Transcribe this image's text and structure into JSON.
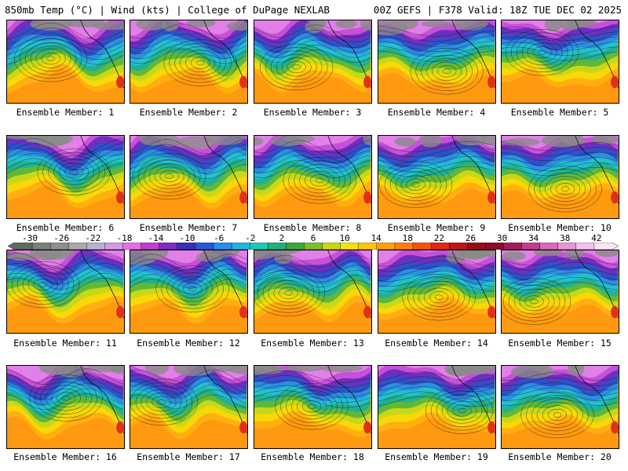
{
  "header": {
    "left": "850mb Temp (°C) | Wind (kts) | College of DuPage NEXLAB",
    "right": "00Z GEFS | F378 Valid: 18Z TUE DEC 02 2025"
  },
  "member_prefix": "Ensemble Member: ",
  "members": [
    {
      "label": "Ensemble Member: 1"
    },
    {
      "label": "Ensemble Member: 2"
    },
    {
      "label": "Ensemble Member: 3"
    },
    {
      "label": "Ensemble Member: 4"
    },
    {
      "label": "Ensemble Member: 5"
    },
    {
      "label": "Ensemble Member: 6"
    },
    {
      "label": "Ensemble Member: 7"
    },
    {
      "label": "Ensemble Member: 8"
    },
    {
      "label": "Ensemble Member: 9"
    },
    {
      "label": "Ensemble Member: 10"
    },
    {
      "label": "Ensemble Member: 11"
    },
    {
      "label": "Ensemble Member: 12"
    },
    {
      "label": "Ensemble Member: 13"
    },
    {
      "label": "Ensemble Member: 14"
    },
    {
      "label": "Ensemble Member: 15"
    },
    {
      "label": "Ensemble Member: 16"
    },
    {
      "label": "Ensemble Member: 17"
    },
    {
      "label": "Ensemble Member: 18"
    },
    {
      "label": "Ensemble Member: 19"
    },
    {
      "label": "Ensemble Member: 20"
    }
  ],
  "colorbar": {
    "ticks": [
      "-30",
      "-26",
      "-22",
      "-18",
      "-14",
      "-10",
      "-6",
      "-2",
      "2",
      "6",
      "10",
      "14",
      "18",
      "22",
      "26",
      "30",
      "34",
      "38",
      "42"
    ],
    "colors": [
      "#5f6b60",
      "#7a807a",
      "#8e8e8e",
      "#a9a9a9",
      "#b7b1d2",
      "#d19be0",
      "#e66ee6",
      "#c03fd0",
      "#7a2fc0",
      "#3a2fb8",
      "#2a57d8",
      "#2b8de8",
      "#20b5e0",
      "#1cc7b6",
      "#22b07a",
      "#3ba83c",
      "#7bbf2a",
      "#c9d60f",
      "#f2e40a",
      "#ffc40a",
      "#ffa00a",
      "#ff7e0a",
      "#f4540e",
      "#e02a12",
      "#c0141a",
      "#9a0c1a",
      "#8a0b2a",
      "#9e1e5a",
      "#c23c8a",
      "#d86ab6",
      "#e696d2",
      "#f2c3e6",
      "#fae6f4"
    ],
    "min": -32,
    "max": 44
  }
}
